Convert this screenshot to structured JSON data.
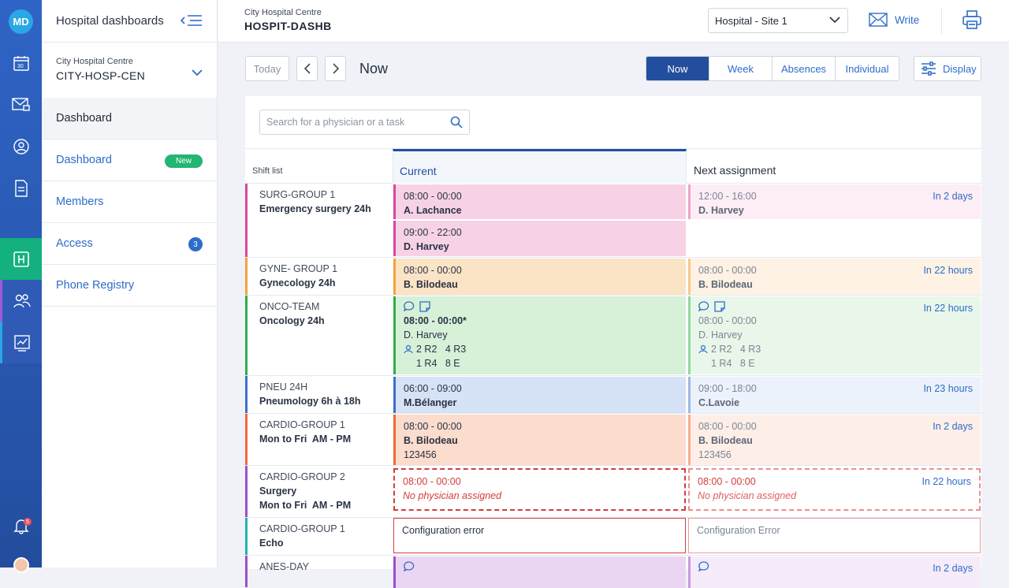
{
  "app": {
    "logo": "MD",
    "bell_count": "5"
  },
  "sidebar": {
    "title": "Hospital dashboards",
    "org_sub": "City Hospital Centre",
    "org_code": "CITY-HOSP-CEN",
    "items": [
      {
        "label": "Dashboard"
      },
      {
        "label": "Dashboard",
        "badge": "New"
      },
      {
        "label": "Members"
      },
      {
        "label": "Access",
        "count": "3"
      },
      {
        "label": "Phone Registry"
      }
    ]
  },
  "header": {
    "hospital_sub": "City Hospital Centre",
    "hospital_code": "HOSPIT-DASHB",
    "site": "Hospital - Site 1",
    "write": "Write"
  },
  "toolbar": {
    "today": "Today",
    "title": "Now",
    "views": [
      "Now",
      "Week",
      "Absences",
      "Individual"
    ],
    "display": "Display"
  },
  "search": {
    "placeholder": "Search for a physician or a task"
  },
  "columns": {
    "shift": "Shift list",
    "current": "Current",
    "next": "Next assignment"
  },
  "rows": [
    {
      "group": "SURG-GROUP 1",
      "name": "Emergency surgery 24h",
      "color": "#d8489b",
      "current": [
        {
          "time": "08:00 - 00:00",
          "doc": "A. Lachance"
        },
        {
          "time": "09:00 - 22:00",
          "doc": "D. Harvey"
        }
      ],
      "next": {
        "time": "12:00 - 16:00",
        "doc": "D. Harvey",
        "when": "In 2 days"
      }
    },
    {
      "group": "GYNE- GROUP 1",
      "name": "Gynecology 24h",
      "color": "#f0a43c",
      "current": {
        "time": "08:00 - 00:00",
        "doc": "B. Bilodeau"
      },
      "next": {
        "time": "08:00 - 00:00",
        "doc": "B. Bilodeau",
        "when": "In 22 hours"
      }
    },
    {
      "group": "ONCO-TEAM",
      "name": "Oncology 24h",
      "color": "#2fae4c",
      "current": {
        "time": "08:00 - 00:00*",
        "doc": "D. Harvey",
        "m1": "2 R2   4 R3",
        "m2": "1 R4   8 E"
      },
      "next": {
        "time": "08:00 - 00:00",
        "doc": "D. Harvey",
        "m1": "2 R2   4 R3",
        "m2": "1 R4   8 E",
        "when": "In 22 hours"
      }
    },
    {
      "group": "PNEU 24H",
      "name": "Pneumology 6h à 18h",
      "color": "#3f6fc9",
      "current": {
        "time": "06:00 - 09:00",
        "doc": "M.Bélanger"
      },
      "next": {
        "time": "09:00 - 18:00",
        "doc": "C.Lavoie",
        "when": "In 23 hours"
      }
    },
    {
      "group": "CARDIO-GROUP 1",
      "name": "Mon to Fri  AM - PM",
      "color": "#ef6a3a",
      "current": {
        "time": "08:00 - 00:00",
        "doc": "B. Bilodeau",
        "extra": "123456"
      },
      "next": {
        "time": "08:00 - 00:00",
        "doc": "B. Bilodeau",
        "extra": "123456",
        "when": "In 2 days"
      }
    },
    {
      "group": "CARDIO-GROUP 2",
      "name": "Surgery",
      "name2": "Mon to Fri  AM - PM",
      "color": "#9c4fc9",
      "current": {
        "time": "08:00 - 00:00",
        "note": "No physician assigned"
      },
      "next": {
        "time": "08:00 - 00:00",
        "note": "No physician assigned",
        "when": "In 22 hours"
      }
    },
    {
      "group": "CARDIO-GROUP 1",
      "name": "Echo",
      "color": "#22b4a8",
      "current": {
        "text": "Configuration error"
      },
      "next": {
        "text": "Configuration Error"
      }
    },
    {
      "group": "ANES-DAY",
      "color": "#9c4fc9",
      "next": {
        "when": "In 2 days"
      }
    }
  ]
}
